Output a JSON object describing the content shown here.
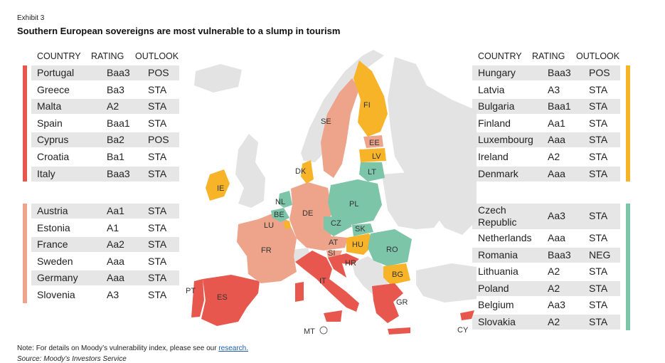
{
  "exhibit": "Exhibit 3",
  "title": "Southern European sovereigns are most vulnerable to a slump in tourism",
  "headers": {
    "country": "COUNTRY",
    "rating": "RATING",
    "outlook": "OUTLOOK"
  },
  "colors": {
    "red": "#e8574d",
    "salmon": "#eda48a",
    "yellow": "#f8b428",
    "teal": "#7cc5a8",
    "grey": "#e3e3e3"
  },
  "groups": {
    "red": [
      {
        "country": "Portugal",
        "rating": "Baa3",
        "outlook": "POS"
      },
      {
        "country": "Greece",
        "rating": "Ba3",
        "outlook": "STA"
      },
      {
        "country": "Malta",
        "rating": "A2",
        "outlook": "STA"
      },
      {
        "country": "Spain",
        "rating": "Baa1",
        "outlook": "STA"
      },
      {
        "country": "Cyprus",
        "rating": "Ba2",
        "outlook": "POS"
      },
      {
        "country": "Croatia",
        "rating": "Ba1",
        "outlook": "STA"
      },
      {
        "country": "Italy",
        "rating": "Baa3",
        "outlook": "STA"
      }
    ],
    "salmon": [
      {
        "country": "Austria",
        "rating": "Aa1",
        "outlook": "STA"
      },
      {
        "country": "Estonia",
        "rating": "A1",
        "outlook": "STA"
      },
      {
        "country": "France",
        "rating": "Aa2",
        "outlook": "STA"
      },
      {
        "country": "Sweden",
        "rating": "Aaa",
        "outlook": "STA"
      },
      {
        "country": "Germany",
        "rating": "Aaa",
        "outlook": "STA"
      },
      {
        "country": "Slovenia",
        "rating": "A3",
        "outlook": "STA"
      }
    ],
    "yellow": [
      {
        "country": "Hungary",
        "rating": "Baa3",
        "outlook": "POS"
      },
      {
        "country": "Latvia",
        "rating": "A3",
        "outlook": "STA"
      },
      {
        "country": "Bulgaria",
        "rating": "Baa1",
        "outlook": "STA"
      },
      {
        "country": "Finland",
        "rating": "Aa1",
        "outlook": "STA"
      },
      {
        "country": "Luxembourg",
        "rating": "Aaa",
        "outlook": "STA"
      },
      {
        "country": "Ireland",
        "rating": "A2",
        "outlook": "STA"
      },
      {
        "country": "Denmark",
        "rating": "Aaa",
        "outlook": "STA"
      }
    ],
    "teal": [
      {
        "country": "Czech Republic",
        "rating": "Aa3",
        "outlook": "STA"
      },
      {
        "country": "Netherlands",
        "rating": "Aaa",
        "outlook": "STA"
      },
      {
        "country": "Romania",
        "rating": "Baa3",
        "outlook": "NEG"
      },
      {
        "country": "Lithuania",
        "rating": "A2",
        "outlook": "STA"
      },
      {
        "country": "Poland",
        "rating": "A2",
        "outlook": "STA"
      },
      {
        "country": "Belgium",
        "rating": "Aa3",
        "outlook": "STA"
      },
      {
        "country": "Slovakia",
        "rating": "A2",
        "outlook": "STA"
      }
    ]
  },
  "map_labels": {
    "pt": "PT",
    "es": "ES",
    "fr": "FR",
    "ie": "IE",
    "be": "BE",
    "nl": "NL",
    "lu": "LU",
    "de": "DE",
    "dk": "DK",
    "se": "SE",
    "fi": "FI",
    "ee": "EE",
    "lv": "LV",
    "lt": "LT",
    "pl": "PL",
    "cz": "CZ",
    "sk": "SK",
    "at": "AT",
    "si": "SI",
    "hu": "HU",
    "hr": "HR",
    "ro": "RO",
    "bg": "BG",
    "it": "IT",
    "gr": "GR",
    "cy": "CY",
    "mt": "MT"
  },
  "note_prefix": "For details on Moody’s vulnerability index, please see our",
  "note_label": "Note: ",
  "note_link": "research.",
  "source": "Source: Moody’s Investors Service"
}
